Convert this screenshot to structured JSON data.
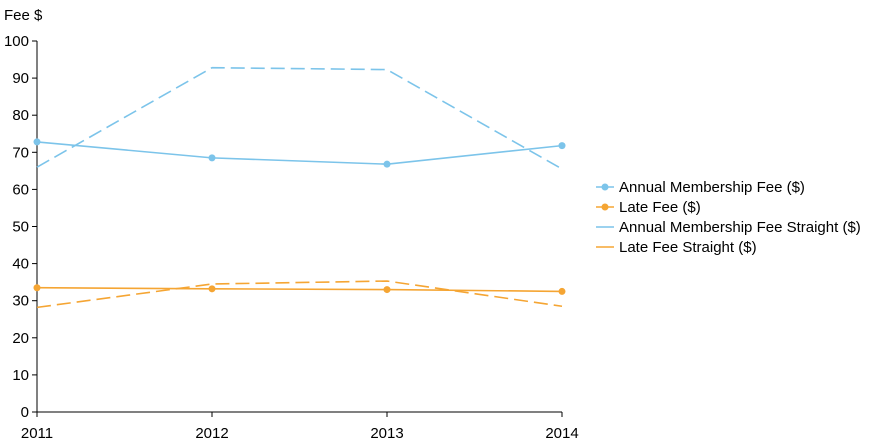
{
  "chart_data": {
    "type": "line",
    "title": "",
    "xlabel": "",
    "ylabel": "Fee $",
    "x": [
      "2011",
      "2012",
      "2013",
      "2014"
    ],
    "ylim": [
      0,
      100
    ],
    "yticks": [
      "0",
      "10",
      "20",
      "30",
      "40",
      "50",
      "60",
      "70",
      "80",
      "90",
      "100"
    ],
    "grid": false,
    "legend_position": "right",
    "series": [
      {
        "name": "Annual Membership Fee ($)",
        "values": [
          72.8,
          68.5,
          66.8,
          71.8
        ],
        "color": "#7cc4ea",
        "style": "solid",
        "markers": true
      },
      {
        "name": "Late Fee ($)",
        "values": [
          33.5,
          33.2,
          33.0,
          32.5
        ],
        "color": "#f5a533",
        "style": "solid",
        "markers": true
      },
      {
        "name": "Annual Membership Fee Straight ($)",
        "values": [
          66.0,
          92.8,
          92.3,
          65.5
        ],
        "color": "#7cc4ea",
        "style": "dashed",
        "markers": false
      },
      {
        "name": "Late Fee Straight ($)",
        "values": [
          28.2,
          34.5,
          35.3,
          28.5
        ],
        "color": "#f5a533",
        "style": "dashed",
        "markers": false
      }
    ]
  }
}
